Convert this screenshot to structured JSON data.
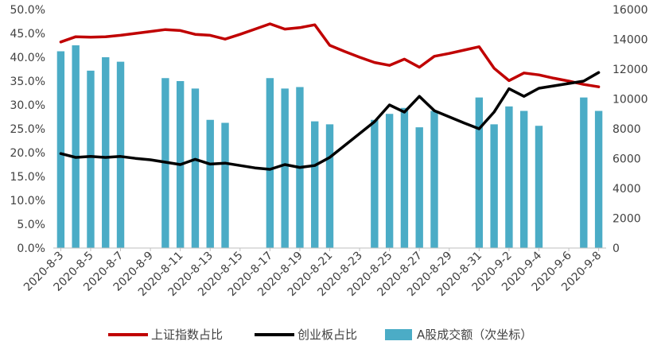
{
  "chart_data": {
    "type": "bar+line",
    "categories": [
      "2020-8-3",
      "2020-8-4",
      "2020-8-5",
      "2020-8-6",
      "2020-8-7",
      "2020-8-8",
      "2020-8-9",
      "2020-8-10",
      "2020-8-11",
      "2020-8-12",
      "2020-8-13",
      "2020-8-14",
      "2020-8-15",
      "2020-8-16",
      "2020-8-17",
      "2020-8-18",
      "2020-8-19",
      "2020-8-20",
      "2020-8-21",
      "2020-8-22",
      "2020-8-23",
      "2020-8-24",
      "2020-8-25",
      "2020-8-26",
      "2020-8-27",
      "2020-8-28",
      "2020-8-29",
      "2020-8-30",
      "2020-8-31",
      "2020-9-1",
      "2020-9-2",
      "2020-9-3",
      "2020-9-4",
      "2020-9-5",
      "2020-9-6",
      "2020-9-7",
      "2020-9-8"
    ],
    "x_tick_labels": [
      "2020-8-3",
      "2020-8-5",
      "2020-8-7",
      "2020-8-9",
      "2020-8-11",
      "2020-8-13",
      "2020-8-15",
      "2020-8-17",
      "2020-8-19",
      "2020-8-21",
      "2020-8-23",
      "2020-8-25",
      "2020-8-27",
      "2020-8-29",
      "2020-8-31",
      "2020-9-2",
      "2020-9-4",
      "2020-9-6",
      "2020-9-8"
    ],
    "y_left": {
      "min": 0,
      "max": 50,
      "ticks": [
        "0.0%",
        "5.0%",
        "10.0%",
        "15.0%",
        "20.0%",
        "25.0%",
        "30.0%",
        "35.0%",
        "40.0%",
        "45.0%",
        "50.0%"
      ]
    },
    "y_right": {
      "min": 0,
      "max": 16000,
      "ticks": [
        "0",
        "2000",
        "4000",
        "6000",
        "8000",
        "10000",
        "12000",
        "14000",
        "16000"
      ]
    },
    "series": [
      {
        "name": "上证指数占比",
        "kind": "line",
        "axis": "left",
        "color": "#C00000",
        "values": [
          43.2,
          44.3,
          44.2,
          44.3,
          44.6,
          45.0,
          45.4,
          45.8,
          45.6,
          44.8,
          44.6,
          43.8,
          44.8,
          45.9,
          47.0,
          45.9,
          46.2,
          46.8,
          42.5,
          41.2,
          40.0,
          38.9,
          38.3,
          39.6,
          37.9,
          40.2,
          40.8,
          41.5,
          42.2,
          37.7,
          35.1,
          36.7,
          36.3,
          35.6,
          35.0,
          34.3,
          33.8
        ]
      },
      {
        "name": "创业板占比",
        "kind": "line",
        "axis": "left",
        "color": "#000000",
        "values": [
          19.8,
          19.0,
          19.2,
          19.0,
          19.2,
          18.8,
          18.5,
          18.0,
          17.5,
          18.6,
          17.6,
          17.8,
          17.3,
          16.8,
          16.5,
          17.5,
          16.9,
          17.3,
          19.0,
          21.5,
          24.0,
          26.5,
          30.0,
          28.5,
          31.8,
          28.8,
          27.5,
          26.2,
          25.0,
          28.5,
          33.4,
          31.8,
          33.5,
          34.0,
          34.5,
          35.0,
          36.8
        ]
      },
      {
        "name": "A股成交额（次坐标）",
        "kind": "bar",
        "axis": "right",
        "color": "#4BACC6",
        "values": [
          13200,
          13600,
          11900,
          12800,
          12500,
          null,
          null,
          11400,
          11200,
          10700,
          8600,
          8400,
          null,
          null,
          11400,
          10700,
          10800,
          8500,
          8300,
          null,
          null,
          8600,
          9000,
          9400,
          8100,
          9200,
          null,
          null,
          10100,
          8300,
          9500,
          9200,
          8200,
          null,
          null,
          10100,
          9200
        ]
      }
    ],
    "legend": {
      "position": "bottom",
      "entries": [
        "上证指数占比",
        "创业板占比",
        "A股成交额（次坐标）"
      ]
    }
  }
}
